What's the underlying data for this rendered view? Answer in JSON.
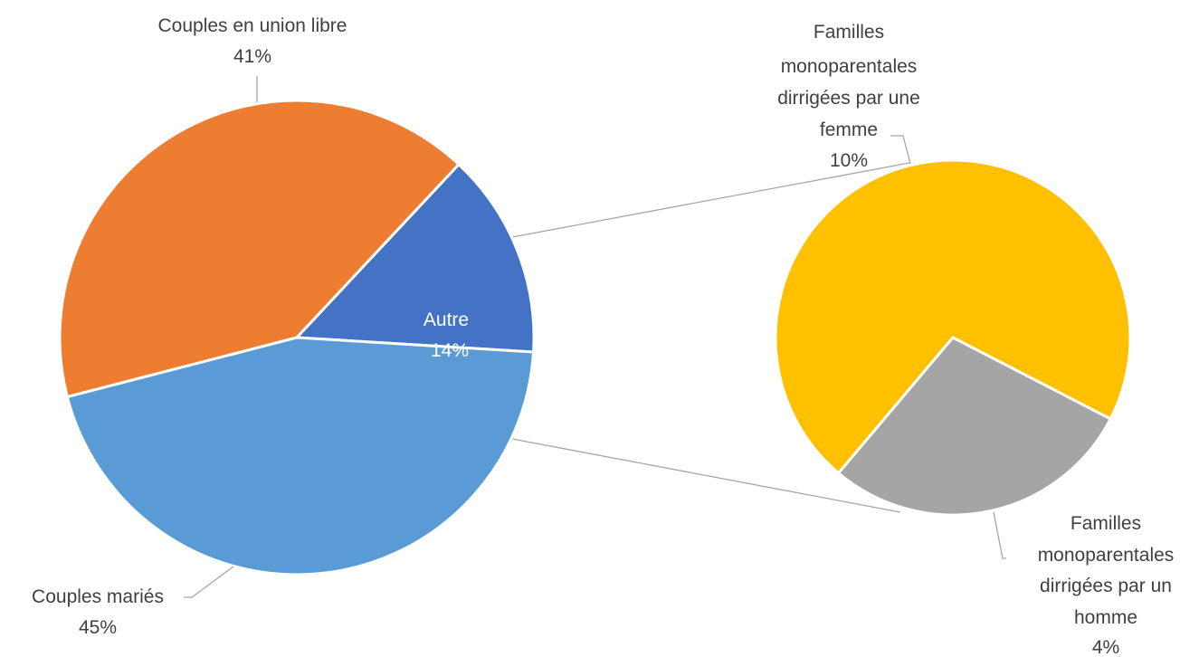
{
  "chart_data": {
    "type": "pie",
    "subtype": "pie-of-pie",
    "main_pie": {
      "slices": [
        {
          "name": "Couples en union libre",
          "value": 41,
          "value_label": "41%",
          "color": "#ED7D31"
        },
        {
          "name": "Autre",
          "value": 14,
          "value_label": "14%",
          "color": "#4472C4"
        },
        {
          "name": "Couples mariés",
          "value": 45,
          "value_label": "45%",
          "color": "#5B9BD5"
        }
      ]
    },
    "secondary_pie": {
      "source_slice": "Autre",
      "slices": [
        {
          "name_lines": [
            "Familles",
            "monoparentales",
            "dirrigées par une",
            "femme"
          ],
          "value": 10,
          "value_label": "10%",
          "color": "#FFC000"
        },
        {
          "name_lines": [
            "Familles",
            "monoparentales",
            "dirrigées par un",
            "homme"
          ],
          "value": 4,
          "value_label": "4%",
          "color": "#A5A5A5"
        }
      ]
    },
    "legend": "none"
  }
}
